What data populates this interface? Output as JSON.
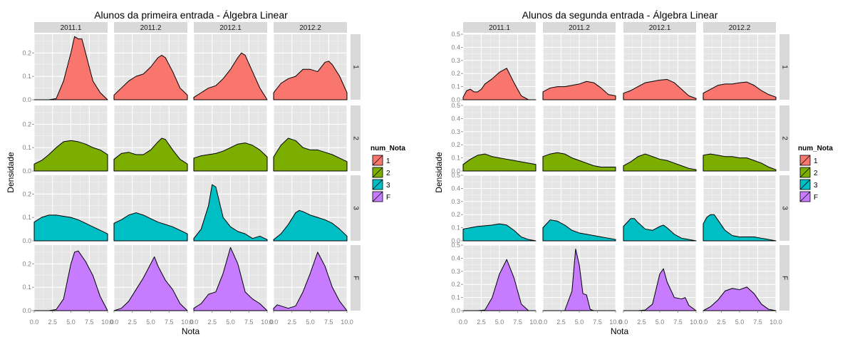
{
  "chart_data": [
    {
      "type": "area",
      "title": "Alunos da primeira entrada -  Álgebra Linear",
      "xlabel": "Nota",
      "ylabel": "Densidade",
      "facet_cols": [
        "2011.1",
        "2011.2",
        "2012.1",
        "2012.2"
      ],
      "facet_rows": [
        "1",
        "2",
        "3",
        "F"
      ],
      "xlim": [
        0,
        10
      ],
      "xticks": [
        "0.0",
        "2.5",
        "5.0",
        "7.5",
        "10.0"
      ],
      "xtick_values": [
        0,
        2.5,
        5,
        7.5,
        10
      ],
      "ylim": [
        0,
        0.28
      ],
      "yticks": [
        "0.0",
        "0.1",
        "0.2"
      ],
      "ytick_values": [
        0,
        0.1,
        0.2
      ],
      "ygrid_minor": [
        0.05,
        0.15,
        0.25
      ],
      "grid": true,
      "legend": {
        "title": "num_Nota",
        "position": "right",
        "labels": [
          "1",
          "2",
          "3",
          "F"
        ],
        "colors": [
          "#F8766D",
          "#7CAE00",
          "#00BFC4",
          "#C77CFF"
        ]
      },
      "panels": [
        [
          {
            "x": [
              0,
              1,
              2,
              3,
              4,
              5,
              5.5,
              6,
              6.5,
              7,
              8,
              9,
              10
            ],
            "y": [
              0,
              0,
              0,
              0.005,
              0.08,
              0.2,
              0.27,
              0.26,
              0.26,
              0.2,
              0.08,
              0.03,
              0
            ]
          },
          {
            "x": [
              0,
              1,
              2,
              3,
              4,
              5,
              6,
              6.5,
              7,
              8,
              9,
              10
            ],
            "y": [
              0.02,
              0.05,
              0.08,
              0.1,
              0.11,
              0.14,
              0.18,
              0.19,
              0.18,
              0.12,
              0.05,
              0.02
            ]
          },
          {
            "x": [
              0,
              1,
              2,
              3,
              4,
              5,
              6,
              6.5,
              7,
              8,
              9,
              10
            ],
            "y": [
              0.01,
              0.03,
              0.05,
              0.06,
              0.09,
              0.13,
              0.18,
              0.2,
              0.19,
              0.12,
              0.05,
              0
            ]
          },
          {
            "x": [
              0,
              1,
              2,
              3,
              4,
              4.5,
              5,
              6,
              7,
              7.5,
              8,
              9,
              10
            ],
            "y": [
              0.03,
              0.07,
              0.09,
              0.1,
              0.13,
              0.13,
              0.13,
              0.12,
              0.16,
              0.165,
              0.15,
              0.1,
              0.03
            ]
          }
        ],
        [
          {
            "x": [
              0,
              1,
              2,
              3,
              4,
              5,
              6,
              7,
              8,
              9,
              10
            ],
            "y": [
              0.03,
              0.045,
              0.07,
              0.1,
              0.125,
              0.13,
              0.125,
              0.115,
              0.1,
              0.09,
              0.07
            ]
          },
          {
            "x": [
              0,
              1,
              2,
              3,
              4,
              5,
              6,
              6.5,
              7,
              8,
              9,
              10
            ],
            "y": [
              0.05,
              0.075,
              0.08,
              0.07,
              0.07,
              0.09,
              0.125,
              0.14,
              0.135,
              0.09,
              0.05,
              0.03
            ]
          },
          {
            "x": [
              0,
              1,
              2,
              3,
              4,
              5,
              6,
              7,
              8,
              9,
              10
            ],
            "y": [
              0.055,
              0.065,
              0.07,
              0.075,
              0.085,
              0.1,
              0.115,
              0.12,
              0.11,
              0.09,
              0.06
            ]
          },
          {
            "x": [
              0,
              1,
              2,
              3,
              4,
              5,
              6,
              7,
              8,
              9,
              10
            ],
            "y": [
              0.06,
              0.11,
              0.14,
              0.13,
              0.1,
              0.09,
              0.09,
              0.08,
              0.07,
              0.055,
              0.04
            ]
          }
        ],
        [
          {
            "x": [
              0,
              1,
              2,
              3,
              4,
              5,
              6,
              7,
              8,
              9,
              10
            ],
            "y": [
              0.08,
              0.1,
              0.11,
              0.11,
              0.105,
              0.1,
              0.09,
              0.075,
              0.06,
              0.045,
              0.03
            ]
          },
          {
            "x": [
              0,
              1,
              2,
              3,
              4,
              5,
              6,
              7,
              8,
              9,
              10
            ],
            "y": [
              0.075,
              0.09,
              0.11,
              0.12,
              0.11,
              0.095,
              0.08,
              0.07,
              0.06,
              0.045,
              0.03
            ]
          },
          {
            "x": [
              0,
              1,
              2,
              2.5,
              3,
              4,
              5,
              6,
              7,
              8,
              9,
              10
            ],
            "y": [
              0.01,
              0.05,
              0.15,
              0.24,
              0.23,
              0.1,
              0.06,
              0.04,
              0.03,
              0.01,
              0.02,
              0.005
            ]
          },
          {
            "x": [
              0,
              1,
              2,
              3,
              3.5,
              4,
              5,
              6,
              7,
              8,
              9,
              10
            ],
            "y": [
              0.005,
              0.03,
              0.07,
              0.12,
              0.13,
              0.125,
              0.11,
              0.1,
              0.09,
              0.075,
              0.05,
              0.02
            ]
          }
        ],
        [
          {
            "x": [
              0,
              1,
              2,
              3,
              4,
              5,
              5.5,
              6,
              7,
              8,
              9,
              10
            ],
            "y": [
              0,
              0,
              0,
              0.005,
              0.05,
              0.2,
              0.25,
              0.255,
              0.21,
              0.15,
              0.06,
              0
            ]
          },
          {
            "x": [
              0,
              1,
              2,
              3,
              4,
              5,
              5.5,
              6,
              7,
              8,
              9,
              10
            ],
            "y": [
              0,
              0.01,
              0.04,
              0.09,
              0.14,
              0.2,
              0.23,
              0.19,
              0.13,
              0.09,
              0.03,
              0
            ]
          },
          {
            "x": [
              0,
              1,
              2,
              3,
              4,
              5,
              6,
              7,
              8,
              9,
              10
            ],
            "y": [
              0.01,
              0.03,
              0.07,
              0.08,
              0.16,
              0.27,
              0.2,
              0.08,
              0.05,
              0.03,
              0
            ]
          },
          {
            "x": [
              0,
              0.5,
              1,
              2,
              3,
              4,
              5,
              6,
              7,
              8,
              9,
              10
            ],
            "y": [
              0.01,
              0.025,
              0.02,
              0.01,
              0.02,
              0.08,
              0.16,
              0.25,
              0.19,
              0.1,
              0.04,
              0
            ]
          }
        ]
      ]
    },
    {
      "type": "area",
      "title": "Alunos da segunda entrada -  Álgebra Linear",
      "xlabel": "Nota",
      "ylabel": "Densidade",
      "facet_cols": [
        "2011.1",
        "2011.2",
        "2012.1",
        "2012.2"
      ],
      "facet_rows": [
        "1",
        "2",
        "3",
        "F"
      ],
      "xlim": [
        0,
        10
      ],
      "xticks": [
        "0.0",
        "2.5",
        "5.0",
        "7.5",
        "10.0"
      ],
      "xtick_values": [
        0,
        2.5,
        5,
        7.5,
        10
      ],
      "ylim": [
        0,
        0.5
      ],
      "yticks": [
        "0.0",
        "0.1",
        "0.2",
        "0.3",
        "0.4",
        "0.5"
      ],
      "ytick_values": [
        0,
        0.1,
        0.2,
        0.3,
        0.4,
        0.5
      ],
      "grid": true,
      "legend": {
        "title": "num_Nota",
        "position": "right",
        "labels": [
          "1",
          "2",
          "3",
          "F"
        ],
        "colors": [
          "#F8766D",
          "#7CAE00",
          "#00BFC4",
          "#C77CFF"
        ]
      },
      "panels": [
        [
          {
            "x": [
              0,
              0.5,
              1,
              1.5,
              2,
              2.5,
              3,
              4,
              5,
              6,
              7,
              8,
              9,
              10
            ],
            "y": [
              0.02,
              0.07,
              0.08,
              0.06,
              0.06,
              0.08,
              0.12,
              0.16,
              0.21,
              0.24,
              0.13,
              0.03,
              0,
              0
            ]
          },
          {
            "x": [
              0,
              1,
              2,
              3,
              4,
              5,
              6,
              7,
              8,
              9,
              10
            ],
            "y": [
              0.06,
              0.09,
              0.1,
              0.1,
              0.11,
              0.12,
              0.14,
              0.13,
              0.09,
              0.04,
              0.03
            ]
          },
          {
            "x": [
              0,
              1,
              2,
              3,
              4,
              5,
              6,
              7,
              8,
              9,
              10
            ],
            "y": [
              0.05,
              0.07,
              0.1,
              0.13,
              0.14,
              0.15,
              0.155,
              0.13,
              0.08,
              0.03,
              0.01
            ]
          },
          {
            "x": [
              0,
              1,
              2,
              3,
              4,
              5,
              6,
              7,
              8,
              9,
              10
            ],
            "y": [
              0.05,
              0.08,
              0.11,
              0.12,
              0.12,
              0.13,
              0.135,
              0.11,
              0.07,
              0.04,
              0.02
            ]
          }
        ],
        [
          {
            "x": [
              0,
              1,
              2,
              3,
              4,
              5,
              6,
              7,
              8,
              9,
              10
            ],
            "y": [
              0.05,
              0.09,
              0.12,
              0.13,
              0.11,
              0.1,
              0.09,
              0.08,
              0.07,
              0.06,
              0.05
            ]
          },
          {
            "x": [
              0,
              1,
              2,
              3,
              4,
              5,
              6,
              7,
              8,
              9,
              10
            ],
            "y": [
              0.11,
              0.13,
              0.14,
              0.13,
              0.1,
              0.08,
              0.06,
              0.04,
              0.03,
              0.03,
              0.03
            ]
          },
          {
            "x": [
              0,
              1,
              2,
              3,
              4,
              5,
              6,
              7,
              8,
              9,
              10
            ],
            "y": [
              0.04,
              0.07,
              0.11,
              0.13,
              0.11,
              0.09,
              0.08,
              0.06,
              0.04,
              0.02,
              0.01
            ]
          },
          {
            "x": [
              0,
              1,
              2,
              3,
              4,
              5,
              6,
              7,
              8,
              9,
              10
            ],
            "y": [
              0.12,
              0.13,
              0.12,
              0.11,
              0.11,
              0.1,
              0.1,
              0.08,
              0.06,
              0.03,
              0.01
            ]
          }
        ],
        [
          {
            "x": [
              0,
              1,
              2,
              3,
              4,
              5,
              6,
              7,
              8,
              9,
              10
            ],
            "y": [
              0.09,
              0.1,
              0.11,
              0.115,
              0.12,
              0.13,
              0.12,
              0.08,
              0.03,
              0.01,
              0
            ]
          },
          {
            "x": [
              0,
              1,
              2,
              3,
              4,
              5,
              6,
              7,
              8,
              9,
              10
            ],
            "y": [
              0.1,
              0.16,
              0.15,
              0.12,
              0.08,
              0.06,
              0.05,
              0.04,
              0.03,
              0.02,
              0.01
            ]
          },
          {
            "x": [
              0,
              1,
              1.5,
              2,
              3,
              4,
              5,
              5.5,
              6,
              7,
              8,
              9,
              10
            ],
            "y": [
              0.11,
              0.17,
              0.17,
              0.14,
              0.09,
              0.08,
              0.11,
              0.12,
              0.1,
              0.05,
              0.02,
              0.01,
              0
            ]
          },
          {
            "x": [
              0,
              0.5,
              1,
              1.5,
              2,
              3,
              4,
              5,
              6,
              7,
              8,
              9,
              10
            ],
            "y": [
              0.13,
              0.18,
              0.2,
              0.2,
              0.16,
              0.08,
              0.04,
              0.03,
              0.03,
              0.03,
              0.02,
              0.01,
              0
            ]
          }
        ],
        [
          {
            "x": [
              0,
              1,
              2,
              3,
              4,
              5,
              6,
              7,
              8,
              9,
              10
            ],
            "y": [
              0,
              0,
              0,
              0.005,
              0.1,
              0.28,
              0.39,
              0.25,
              0.05,
              0,
              0
            ]
          },
          {
            "x": [
              0,
              1,
              2,
              3,
              4,
              4.5,
              5,
              5.5,
              6,
              6.5,
              7,
              8,
              9,
              10
            ],
            "y": [
              0,
              0,
              0,
              0,
              0.15,
              0.47,
              0.35,
              0.13,
              0.12,
              0.01,
              0,
              0,
              0,
              0
            ]
          },
          {
            "x": [
              0,
              1,
              2,
              3,
              4,
              5,
              5.5,
              6,
              7,
              8,
              8.5,
              9,
              10
            ],
            "y": [
              0,
              0,
              0,
              0.005,
              0.05,
              0.28,
              0.32,
              0.22,
              0.1,
              0.09,
              0.1,
              0.04,
              0
            ]
          },
          {
            "x": [
              0,
              1,
              2,
              3,
              4,
              5,
              6,
              7,
              8,
              9,
              10
            ],
            "y": [
              0,
              0.03,
              0.08,
              0.15,
              0.17,
              0.16,
              0.18,
              0.13,
              0.05,
              0.01,
              0
            ]
          }
        ]
      ]
    }
  ]
}
